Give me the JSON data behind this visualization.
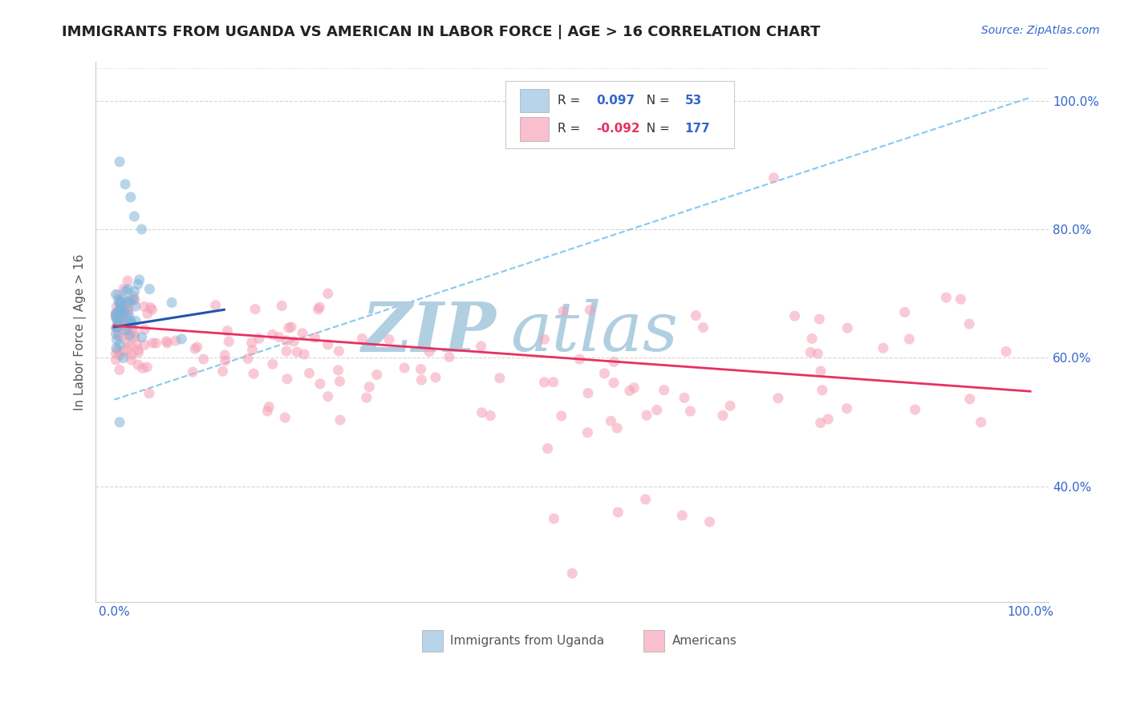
{
  "title": "IMMIGRANTS FROM UGANDA VS AMERICAN IN LABOR FORCE | AGE > 16 CORRELATION CHART",
  "source_text": "Source: ZipAtlas.com",
  "ylabel": "In Labor Force | Age > 16",
  "scatter_blue_color": "#7fb3d9",
  "scatter_pink_color": "#f5a0b5",
  "scatter_alpha": 0.55,
  "scatter_size": 90,
  "blue_line_color": "#2255aa",
  "pink_line_color": "#e83060",
  "dashed_line_color": "#88c8ee",
  "watermark_zip_color": "#b0cfe0",
  "watermark_atlas_color": "#b0cfe0",
  "background_color": "#ffffff",
  "legend_blue_fill": "#b8d4ea",
  "legend_pink_fill": "#f9bfcf",
  "legend_border": "#cccccc",
  "R_blue_val": "0.097",
  "N_blue_val": "53",
  "R_pink_val": "-0.092",
  "N_pink_val": "177",
  "stat_color": "#3366cc",
  "stat_neg_color": "#e83060",
  "ytick_values": [
    0.4,
    0.6,
    0.8,
    1.0
  ],
  "ytick_labels": [
    "40.0%",
    "60.0%",
    "80.0%",
    "100.0%"
  ],
  "xtick_values": [
    0.0,
    1.0
  ],
  "xtick_labels": [
    "0.0%",
    "100.0%"
  ],
  "xlim": [
    -0.02,
    1.02
  ],
  "ylim": [
    0.22,
    1.06
  ],
  "blue_line_y0": 0.648,
  "blue_line_y1": 0.675,
  "pink_line_y0": 0.65,
  "pink_line_y1": 0.548,
  "dashed_line_x0": 0.0,
  "dashed_line_y0": 0.535,
  "dashed_line_x1": 1.0,
  "dashed_line_y1": 1.005,
  "grid_color": "#cccccc",
  "grid_alpha": 0.8,
  "tick_color": "#3366cc",
  "tick_fontsize": 11,
  "ylabel_fontsize": 11,
  "ylabel_color": "#555555",
  "title_fontsize": 13,
  "title_color": "#222222",
  "source_fontsize": 10,
  "source_color": "#3366cc"
}
